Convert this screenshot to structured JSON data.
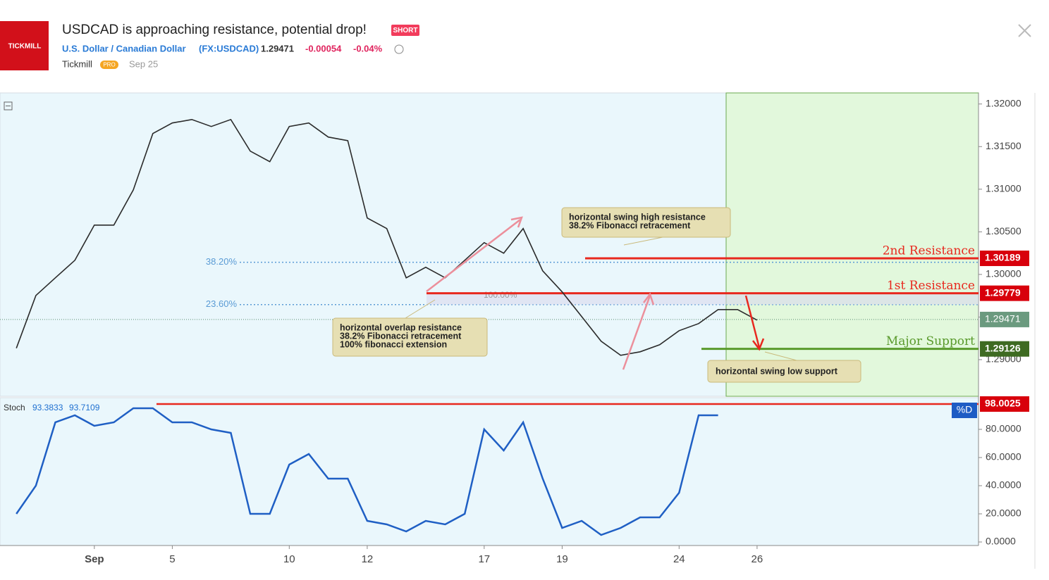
{
  "header": {
    "logo": "TICKMILL",
    "title": "USDCAD is approaching resistance, potential drop!",
    "badge": "SHORT",
    "symbol": "U.S. Dollar / Canadian Dollar",
    "ticker": "(FX:USDCAD)",
    "price": "1.29471",
    "change": "-0.00054",
    "change_pct": "-0.04%",
    "author": "Tickmill",
    "author_badge": "PRO",
    "date": "Sep 25"
  },
  "chart_data": [
    {
      "type": "line",
      "x": [
        -2,
        -1.5,
        -1,
        -0.5,
        0,
        0.5,
        1,
        1.5,
        2,
        2.5,
        3,
        3.5,
        4,
        4.5,
        5,
        5.5,
        6,
        6.5,
        7,
        7.5,
        8,
        8.5,
        9,
        9.5,
        10,
        10.5,
        11,
        11.5,
        12,
        12.5,
        13,
        13.5,
        14,
        14.5,
        15,
        15.5,
        16,
        16.5,
        17
      ],
      "series": [
        {
          "color": "#2b2b2b",
          "values": [
            1.29134,
            1.29753,
            1.2996,
            1.30166,
            1.30579,
            1.30579,
            1.30992,
            1.31653,
            1.31777,
            1.31818,
            1.31736,
            1.31818,
            1.31447,
            1.31323,
            1.31736,
            1.31777,
            1.31612,
            1.3157,
            1.30662,
            1.30538,
            1.2996,
            1.30084,
            1.2996,
            1.30166,
            1.30373,
            1.30249,
            1.30538,
            1.30042,
            1.29795,
            1.29505,
            1.29216,
            1.29051,
            1.29092,
            1.29175,
            1.2934,
            1.29423,
            1.29588,
            1.29588,
            1.29464
          ]
        }
      ],
      "xlim": [
        -2.42,
        22.68
      ],
      "xticks": [
        {
          "value": 0,
          "label": "Sep"
        },
        {
          "value": 2,
          "label": "5"
        },
        {
          "value": 5,
          "label": "10"
        },
        {
          "value": 7,
          "label": "12"
        },
        {
          "value": 10,
          "label": "17"
        },
        {
          "value": 12,
          "label": "19"
        },
        {
          "value": 15,
          "label": "24"
        },
        {
          "value": 17,
          "label": "26"
        }
      ],
      "ylim": [
        1.2857,
        1.3213
      ],
      "yticks": [
        {
          "value": 1.29,
          "label": "1.29000"
        },
        {
          "value": 1.295,
          "label": "1.29500"
        },
        {
          "value": 1.3,
          "label": "1.30000"
        },
        {
          "value": 1.305,
          "label": "1.30500"
        },
        {
          "value": 1.31,
          "label": "1.31000"
        },
        {
          "value": 1.315,
          "label": "1.31500"
        },
        {
          "value": 1.32,
          "label": "1.32000"
        }
      ],
      "current_price": 1.29471,
      "levels": [
        {
          "label": "2nd Resistance",
          "value": 1.30189,
          "color": "#e8281e"
        },
        {
          "label": "1st Resistance",
          "value": 1.29779,
          "color": "#e8281e"
        },
        {
          "label": "Major Support",
          "value": 1.29126,
          "color": "#5a9a2c"
        }
      ],
      "fib_levels": [
        {
          "label": "38.20%",
          "value": 1.30142
        },
        {
          "label": "23.60%",
          "value": 1.29646
        },
        {
          "label": "100.00%",
          "value": 1.29779
        }
      ],
      "annotations": [
        {
          "lines": [
            "horizontal swing high resistance",
            "38.2% Fibonacci retracement"
          ]
        },
        {
          "lines": [
            "horizontal overlap resistance",
            "38.2% Fibonacci retracement",
            "100% fibonacci extension"
          ]
        },
        {
          "lines": [
            "horizontal swing low support"
          ]
        }
      ]
    },
    {
      "type": "line",
      "legend_label": "Stoch",
      "legend_values": [
        93.3833,
        93.7109
      ],
      "x": [
        -2,
        -1.5,
        -1,
        -0.5,
        0,
        0.5,
        1,
        1.5,
        2,
        2.5,
        3,
        3.5,
        4,
        4.5,
        5,
        5.5,
        6,
        6.5,
        7,
        7.5,
        8,
        8.5,
        9,
        9.5,
        10,
        10.5,
        11,
        11.5,
        12,
        12.5,
        13,
        13.5,
        14,
        14.5,
        15,
        15.5,
        16
      ],
      "series": [
        {
          "color": "#1f5fc4",
          "values": [
            20,
            40,
            85,
            90,
            82.5,
            85,
            95,
            95,
            85,
            85,
            80,
            77.5,
            20,
            20,
            55,
            62.5,
            45,
            45,
            15,
            12.5,
            7.5,
            15,
            12.5,
            20,
            80,
            65,
            85,
            45,
            10,
            15,
            5,
            10,
            17.5,
            17.5,
            35,
            90,
            90
          ]
        }
      ],
      "xlim": [
        -2.42,
        22.68
      ],
      "ylim": [
        -2.5,
        102.5
      ],
      "yticks": [
        {
          "value": 0,
          "label": "0.0000"
        },
        {
          "value": 20,
          "label": "20.0000"
        },
        {
          "value": 40,
          "label": "40.0000"
        },
        {
          "value": 60,
          "label": "60.0000"
        },
        {
          "value": 80,
          "label": "80.0000"
        }
      ],
      "level": 98.0025,
      "level_tag": "%D"
    }
  ]
}
